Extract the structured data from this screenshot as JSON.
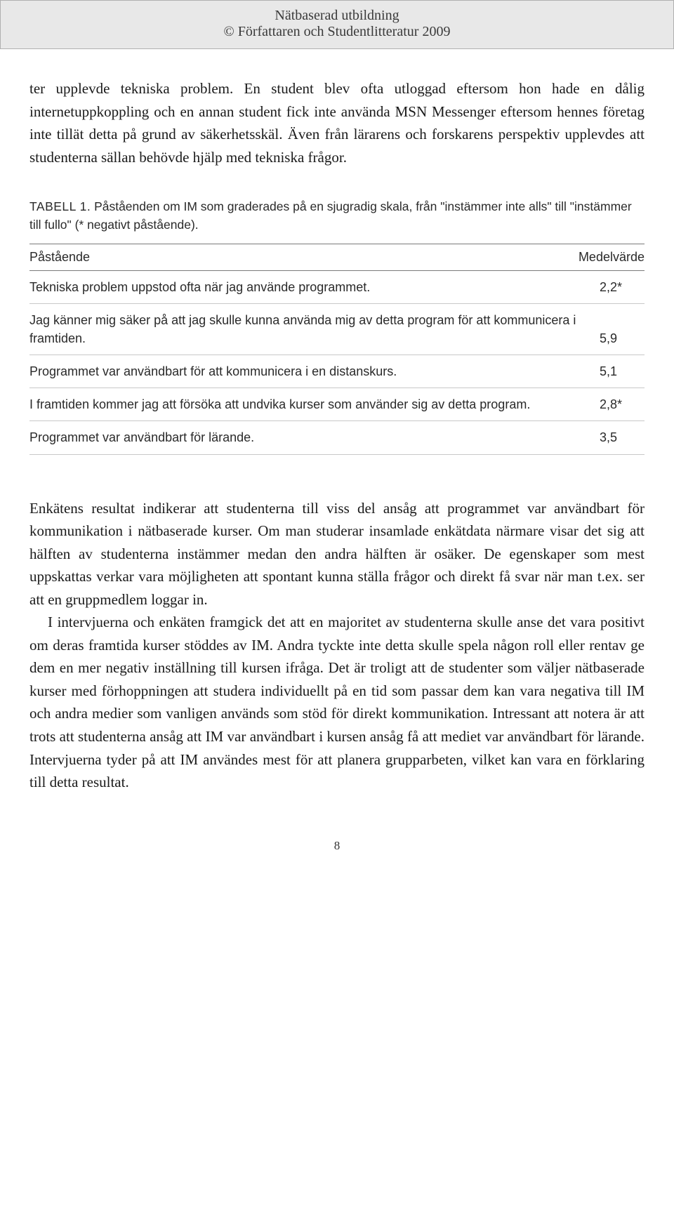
{
  "header": {
    "title": "Nätbaserad utbildning",
    "copyright": "© Författaren och Studentlitteratur 2009"
  },
  "paragraph1": "ter upplevde tekniska problem. En student blev ofta utloggad eftersom hon hade en dålig internetuppkoppling och en annan student fick inte använda MSN Messenger eftersom hennes företag inte tillät detta på grund av säkerhetsskäl. Även från lärarens och forskarens perspektiv upplevdes att studenterna sällan behövde hjälp med tekniska frågor.",
  "table": {
    "label": "TABELL 1.",
    "caption": "Påståenden om IM som graderades på en sjugradig skala, från \"instämmer inte alls\" till \"instämmer till fullo\" (* negativt påstående).",
    "col1": "Påstående",
    "col2": "Medelvärde",
    "rows": [
      {
        "stmt": "Tekniska problem uppstod ofta när jag använde programmet.",
        "val": "2,2*"
      },
      {
        "stmt": "Jag känner mig säker på att jag skulle kunna använda mig av detta program för att kommunicera i framtiden.",
        "val": "5,9"
      },
      {
        "stmt": "Programmet var användbart för att kommunicera i en distanskurs.",
        "val": "5,1"
      },
      {
        "stmt": "I framtiden kommer jag att försöka att undvika kurser som använder sig av detta program.",
        "val": "2,8*"
      },
      {
        "stmt": "Programmet var användbart för lärande.",
        "val": "3,5"
      }
    ]
  },
  "paragraph2a": "Enkätens resultat indikerar att studenterna till viss del ansåg att programmet var användbart för kommunikation i nätbaserade kurser. Om man studerar insamlade enkätdata närmare visar det sig att hälften av studenterna instämmer medan den andra hälften är osäker. De egenskaper som mest uppskattas verkar vara möjligheten att spontant kunna ställa frågor och direkt få svar när man t.ex. ser att en gruppmedlem loggar in.",
  "paragraph2b": "I intervjuerna och enkäten framgick det att en majoritet av studenterna skulle anse det vara positivt om deras framtida kurser stöddes av IM. Andra tyckte inte detta skulle spela någon roll eller rentav ge dem en mer negativ inställning till kursen ifråga. Det är troligt att de studenter som väljer nätbaserade kurser med förhoppningen att studera individuellt på en tid som passar dem kan vara negativa till IM och andra medier som vanligen används som stöd för direkt kommunikation. Intressant att notera är att trots att studenterna ansåg att IM var användbart i kursen ansåg få att mediet var användbart för lärande. Intervjuerna tyder på att IM användes mest för att planera grupparbeten, vilket kan vara en förklaring till detta resultat.",
  "pageNumber": "8"
}
